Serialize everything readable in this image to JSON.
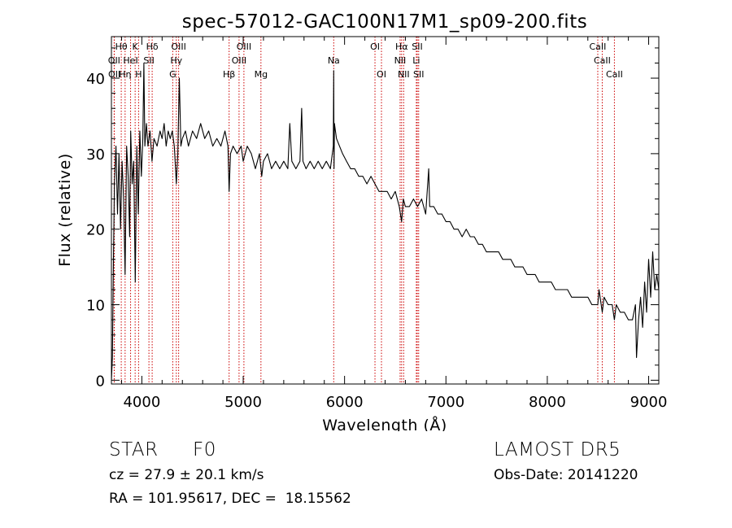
{
  "chart_data": {
    "type": "line",
    "title": "spec-57012-GAC100N17M1_sp09-200.fits",
    "xlabel": "Wavelength (Å)",
    "ylabel": "Flux (relative)",
    "xlim": [
      3700,
      9100
    ],
    "ylim": [
      -0.5,
      45.5
    ],
    "xticks": [
      4000,
      5000,
      6000,
      7000,
      8000,
      9000
    ],
    "yticks": [
      0,
      10,
      20,
      30,
      40
    ],
    "grid": false,
    "series": [
      {
        "points": [
          [
            3700,
            0
          ],
          [
            3710,
            3
          ],
          [
            3720,
            16
          ],
          [
            3730,
            26
          ],
          [
            3745,
            31
          ],
          [
            3760,
            22
          ],
          [
            3775,
            30
          ],
          [
            3790,
            20
          ],
          [
            3805,
            29
          ],
          [
            3820,
            24
          ],
          [
            3835,
            14
          ],
          [
            3850,
            31
          ],
          [
            3865,
            27
          ],
          [
            3880,
            19
          ],
          [
            3890,
            33
          ],
          [
            3905,
            26
          ],
          [
            3920,
            29
          ],
          [
            3935,
            13
          ],
          [
            3950,
            31
          ],
          [
            3965,
            22
          ],
          [
            3980,
            33
          ],
          [
            3995,
            27
          ],
          [
            4010,
            32
          ],
          [
            4020,
            42
          ],
          [
            4030,
            31
          ],
          [
            4045,
            34
          ],
          [
            4060,
            31
          ],
          [
            4080,
            33
          ],
          [
            4100,
            29
          ],
          [
            4120,
            32
          ],
          [
            4150,
            31
          ],
          [
            4180,
            33
          ],
          [
            4200,
            32
          ],
          [
            4220,
            34
          ],
          [
            4240,
            31
          ],
          [
            4260,
            33
          ],
          [
            4280,
            32
          ],
          [
            4300,
            33
          ],
          [
            4320,
            31
          ],
          [
            4340,
            26
          ],
          [
            4355,
            30
          ],
          [
            4370,
            40
          ],
          [
            4385,
            31
          ],
          [
            4400,
            32
          ],
          [
            4430,
            33
          ],
          [
            4460,
            31
          ],
          [
            4500,
            33
          ],
          [
            4540,
            32
          ],
          [
            4580,
            34
          ],
          [
            4620,
            32
          ],
          [
            4660,
            33
          ],
          [
            4700,
            31
          ],
          [
            4740,
            32
          ],
          [
            4780,
            31
          ],
          [
            4820,
            33
          ],
          [
            4850,
            31
          ],
          [
            4861,
            25
          ],
          [
            4875,
            30
          ],
          [
            4900,
            31
          ],
          [
            4940,
            30
          ],
          [
            4980,
            31
          ],
          [
            5000,
            29
          ],
          [
            5040,
            31
          ],
          [
            5080,
            30
          ],
          [
            5120,
            28
          ],
          [
            5160,
            30
          ],
          [
            5183,
            27
          ],
          [
            5200,
            29
          ],
          [
            5240,
            30
          ],
          [
            5280,
            28
          ],
          [
            5320,
            29
          ],
          [
            5360,
            28
          ],
          [
            5400,
            29
          ],
          [
            5440,
            28
          ],
          [
            5460,
            34
          ],
          [
            5480,
            29
          ],
          [
            5520,
            28
          ],
          [
            5560,
            29
          ],
          [
            5577,
            36
          ],
          [
            5590,
            29
          ],
          [
            5620,
            28
          ],
          [
            5660,
            29
          ],
          [
            5700,
            28
          ],
          [
            5740,
            29
          ],
          [
            5780,
            28
          ],
          [
            5820,
            29
          ],
          [
            5860,
            28
          ],
          [
            5889,
            31
          ],
          [
            5893,
            41
          ],
          [
            5896,
            28
          ],
          [
            5900,
            34
          ],
          [
            5920,
            32
          ],
          [
            5950,
            31
          ],
          [
            5980,
            30
          ],
          [
            6020,
            29
          ],
          [
            6060,
            28
          ],
          [
            6100,
            28
          ],
          [
            6140,
            27
          ],
          [
            6180,
            27
          ],
          [
            6220,
            26
          ],
          [
            6260,
            27
          ],
          [
            6300,
            26
          ],
          [
            6340,
            25
          ],
          [
            6380,
            25
          ],
          [
            6420,
            25
          ],
          [
            6460,
            24
          ],
          [
            6500,
            25
          ],
          [
            6540,
            23
          ],
          [
            6563,
            21
          ],
          [
            6580,
            24
          ],
          [
            6600,
            23
          ],
          [
            6640,
            23
          ],
          [
            6680,
            24
          ],
          [
            6720,
            23
          ],
          [
            6760,
            24
          ],
          [
            6800,
            22
          ],
          [
            6830,
            28
          ],
          [
            6840,
            23
          ],
          [
            6880,
            23
          ],
          [
            6920,
            22
          ],
          [
            6960,
            22
          ],
          [
            7000,
            21
          ],
          [
            7040,
            21
          ],
          [
            7080,
            20
          ],
          [
            7120,
            20
          ],
          [
            7160,
            19
          ],
          [
            7200,
            20
          ],
          [
            7240,
            19
          ],
          [
            7280,
            19
          ],
          [
            7320,
            18
          ],
          [
            7360,
            18
          ],
          [
            7400,
            17
          ],
          [
            7440,
            17
          ],
          [
            7480,
            17
          ],
          [
            7520,
            17
          ],
          [
            7560,
            16
          ],
          [
            7600,
            16
          ],
          [
            7640,
            16
          ],
          [
            7680,
            15
          ],
          [
            7720,
            15
          ],
          [
            7760,
            15
          ],
          [
            7800,
            14
          ],
          [
            7840,
            14
          ],
          [
            7880,
            14
          ],
          [
            7920,
            13
          ],
          [
            7960,
            13
          ],
          [
            8000,
            13
          ],
          [
            8040,
            13
          ],
          [
            8080,
            12
          ],
          [
            8120,
            12
          ],
          [
            8160,
            12
          ],
          [
            8200,
            12
          ],
          [
            8240,
            11
          ],
          [
            8280,
            11
          ],
          [
            8320,
            11
          ],
          [
            8360,
            11
          ],
          [
            8400,
            11
          ],
          [
            8440,
            10
          ],
          [
            8480,
            10
          ],
          [
            8498,
            10
          ],
          [
            8510,
            12
          ],
          [
            8542,
            9
          ],
          [
            8560,
            11
          ],
          [
            8600,
            10
          ],
          [
            8640,
            10
          ],
          [
            8662,
            8
          ],
          [
            8680,
            10
          ],
          [
            8720,
            9
          ],
          [
            8760,
            9
          ],
          [
            8800,
            8
          ],
          [
            8840,
            8
          ],
          [
            8870,
            10
          ],
          [
            8880,
            3
          ],
          [
            8900,
            8
          ],
          [
            8920,
            11
          ],
          [
            8940,
            7
          ],
          [
            8960,
            13
          ],
          [
            8980,
            9
          ],
          [
            9000,
            16
          ],
          [
            9020,
            11
          ],
          [
            9040,
            17
          ],
          [
            9060,
            12
          ],
          [
            9080,
            14
          ],
          [
            9100,
            12
          ]
        ]
      }
    ],
    "lines": [
      {
        "label": "Hθ",
        "x": 3797,
        "row": 0
      },
      {
        "label": "K",
        "x": 3934,
        "row": 0
      },
      {
        "label": "Hδ",
        "x": 4102,
        "row": 0
      },
      {
        "label": "OIII",
        "x": 4363,
        "row": 0
      },
      {
        "label": "OIII",
        "x": 5007,
        "row": 0
      },
      {
        "label": "OI",
        "x": 6300,
        "row": 0
      },
      {
        "label": "Hα",
        "x": 6563,
        "row": 0
      },
      {
        "label": "SII",
        "x": 6717,
        "row": 0
      },
      {
        "label": "CaII",
        "x": 8498,
        "row": 0
      },
      {
        "label": "OII",
        "x": 3727,
        "row": 1
      },
      {
        "label": "HeI",
        "x": 3889,
        "row": 1
      },
      {
        "label": "SII",
        "x": 4070,
        "row": 1
      },
      {
        "label": "Hγ",
        "x": 4340,
        "row": 1
      },
      {
        "label": "OIII",
        "x": 4959,
        "row": 1
      },
      {
        "label": "Na",
        "x": 5893,
        "row": 1
      },
      {
        "label": "NII",
        "x": 6548,
        "row": 1
      },
      {
        "label": "Li",
        "x": 6708,
        "row": 1
      },
      {
        "label": "CaII",
        "x": 8542,
        "row": 1
      },
      {
        "label": "OII",
        "x": 3729,
        "row": 2
      },
      {
        "label": "Hη",
        "x": 3835,
        "row": 2
      },
      {
        "label": "H",
        "x": 3968,
        "row": 2
      },
      {
        "label": "G",
        "x": 4305,
        "row": 2
      },
      {
        "label": "Hβ",
        "x": 4861,
        "row": 2
      },
      {
        "label": "Mg",
        "x": 5175,
        "row": 2
      },
      {
        "label": "OI",
        "x": 6364,
        "row": 2
      },
      {
        "label": "NII",
        "x": 6583,
        "row": 2
      },
      {
        "label": "SII",
        "x": 6731,
        "row": 2
      },
      {
        "label": "CaII",
        "x": 8662,
        "row": 2
      }
    ]
  },
  "info": {
    "object_class": "STAR",
    "subclass": "F0",
    "survey": "LAMOST DR5",
    "cz": "cz = 27.9 ± 20.1 km/s",
    "obs_date": "Obs-Date: 20141220",
    "coords": "RA = 101.95617, DEC =  18.15562"
  },
  "colors": {
    "spectrum": "#000000",
    "line_marker": "#cc0000",
    "axis": "#000000",
    "background": "#ffffff"
  }
}
